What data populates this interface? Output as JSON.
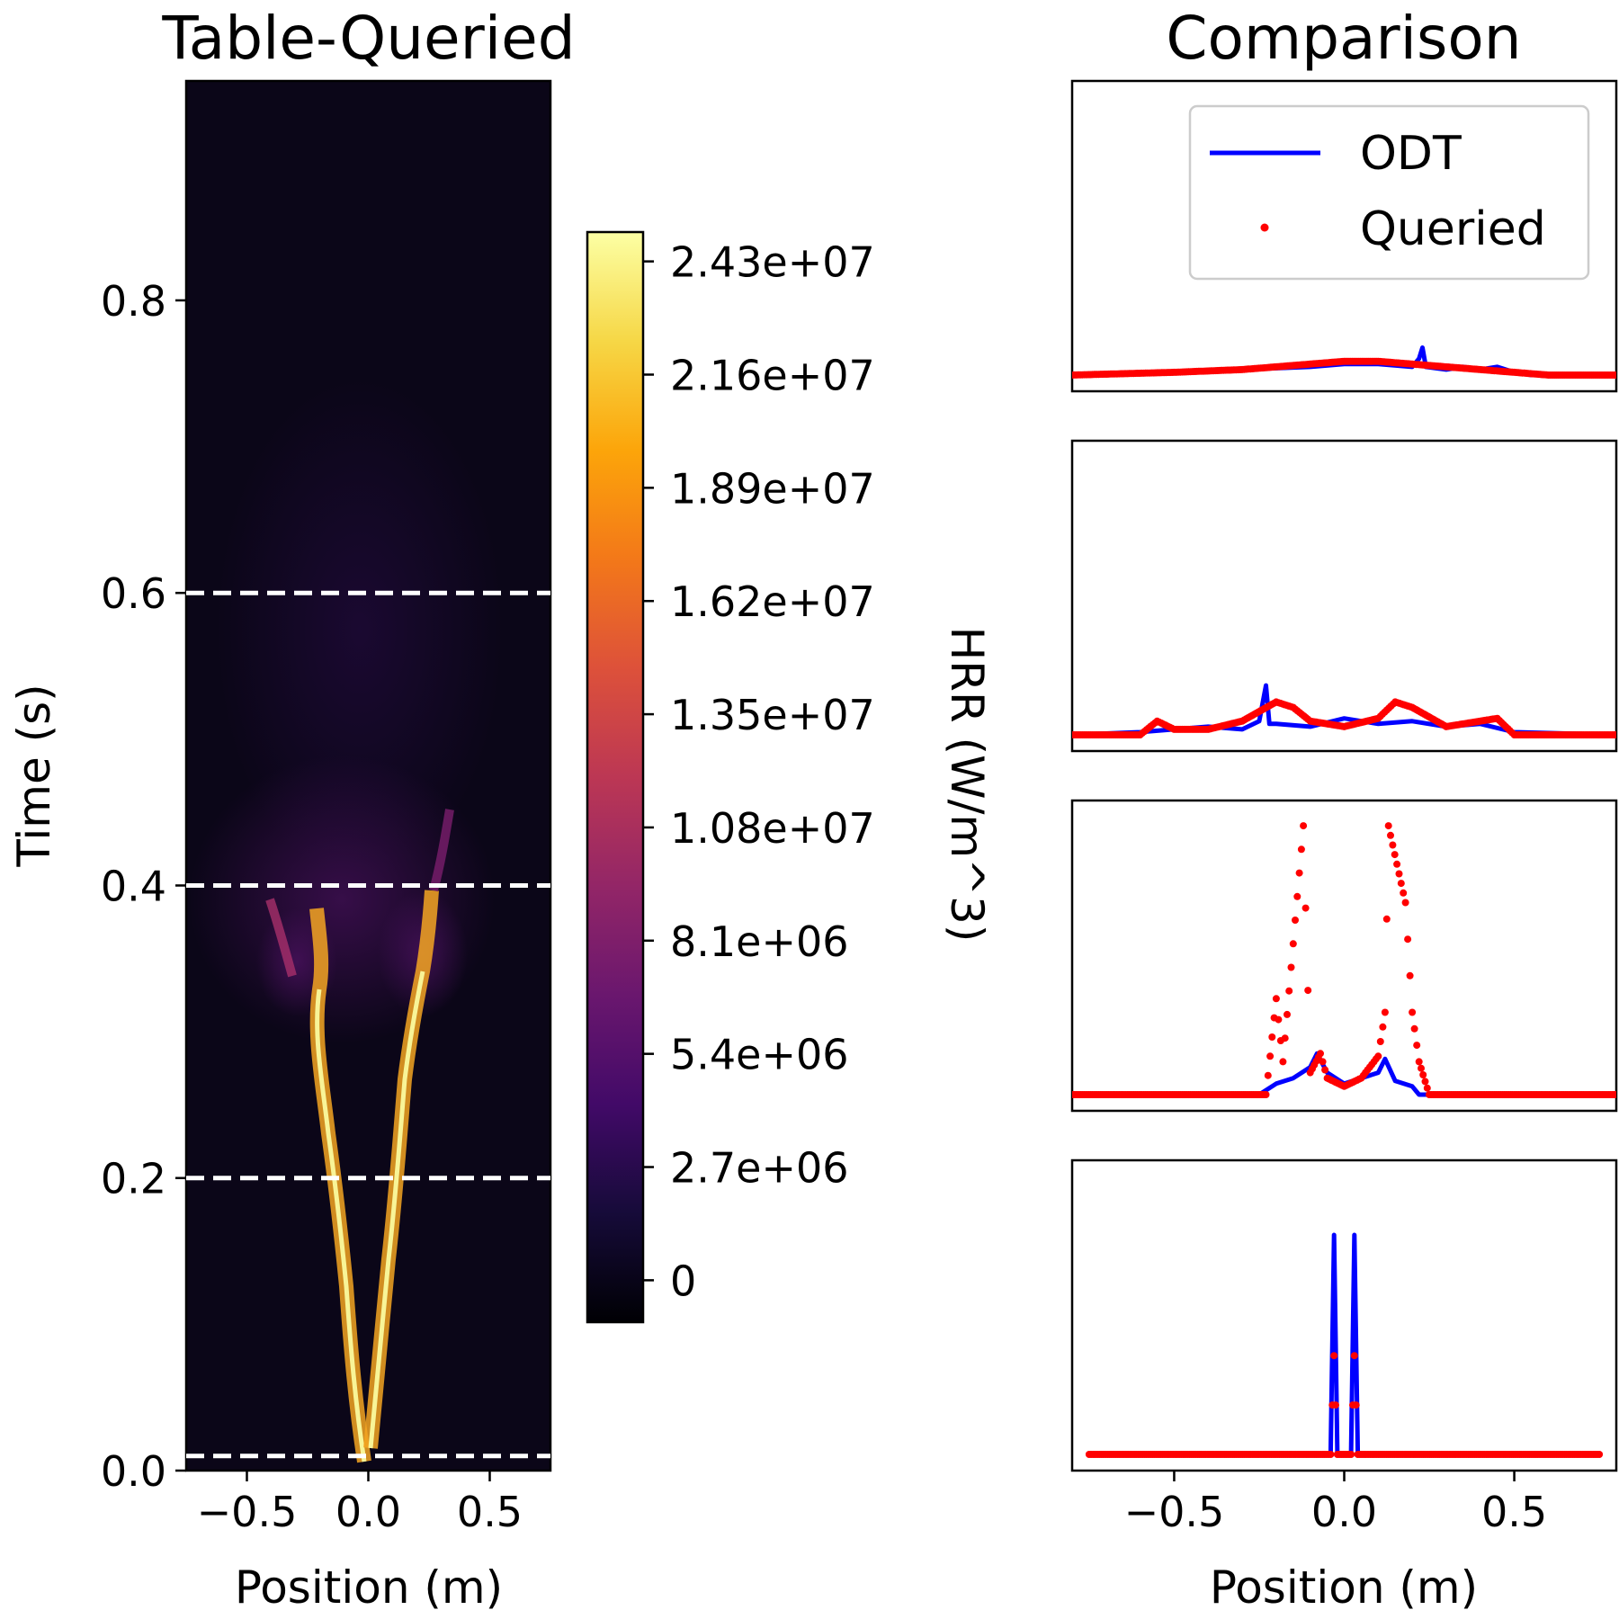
{
  "chart_data": [
    {
      "type": "heatmap",
      "title": "Table-Queried",
      "xlabel": "Position (m)",
      "ylabel": "Time (s)",
      "xlim": [
        -0.75,
        0.75
      ],
      "ylim": [
        0.0,
        0.95
      ],
      "x_ticks": [
        "−0.5",
        "0.0",
        "0.5"
      ],
      "x_tick_values": [
        -0.5,
        0.0,
        0.5
      ],
      "y_ticks": [
        "0.0",
        "0.2",
        "0.4",
        "0.6",
        "0.8"
      ],
      "y_tick_values": [
        0.0,
        0.2,
        0.4,
        0.6,
        0.8
      ],
      "colormap": "inferno",
      "reference_lines": [
        0.01,
        0.2,
        0.4,
        0.6
      ],
      "reference_line_color": "#ffffff",
      "reference_line_style": "dashed",
      "colorbar": {
        "label": "HRR (W/m^3)",
        "range": [
          -1000000,
          25000000
        ],
        "tick_labels": [
          "0",
          "2.7e+06",
          "5.4e+06",
          "8.1e+06",
          "1.08e+07",
          "1.35e+07",
          "1.62e+07",
          "1.89e+07",
          "2.16e+07",
          "2.43e+07"
        ],
        "tick_values": [
          0,
          2700000,
          5400000,
          8100000,
          10800000,
          13500000,
          16200000,
          18900000,
          21600000,
          24300000
        ]
      }
    },
    {
      "type": "line",
      "title": "Comparison",
      "xlabel": "Position (m)",
      "xlim": [
        -0.8,
        0.8
      ],
      "x_ticks": [
        "−0.5",
        "0.0",
        "0.5"
      ],
      "x_tick_values": [
        -0.5,
        0.0,
        0.5
      ],
      "legend": {
        "placement": "upper right",
        "entries": [
          "ODT",
          "Queried"
        ]
      },
      "colors": {
        "ODT": "#0000ff",
        "Queried": "#ff0000"
      },
      "panels": [
        {
          "time": 0.6,
          "ylim": [
            0,
            1
          ],
          "series": [
            {
              "name": "ODT",
              "x": [
                -0.8,
                -0.5,
                -0.3,
                -0.1,
                0.0,
                0.1,
                0.2,
                0.22,
                0.23,
                0.24,
                0.3,
                0.35,
                0.4,
                0.45,
                0.5,
                0.55,
                0.8
              ],
              "y": [
                0.0,
                0.01,
                0.02,
                0.03,
                0.04,
                0.04,
                0.03,
                0.06,
                0.1,
                0.03,
                0.02,
                0.03,
                0.02,
                0.03,
                0.01,
                0.0,
                0.0
              ]
            },
            {
              "name": "Queried",
              "x": [
                -0.8,
                -0.5,
                -0.3,
                -0.1,
                0.0,
                0.1,
                0.2,
                0.3,
                0.4,
                0.5,
                0.6,
                0.8
              ],
              "y": [
                0.0,
                0.01,
                0.02,
                0.04,
                0.05,
                0.05,
                0.04,
                0.03,
                0.02,
                0.01,
                0.0,
                0.0
              ]
            }
          ]
        },
        {
          "time": 0.4,
          "ylim": [
            0,
            1
          ],
          "series": [
            {
              "name": "ODT",
              "x": [
                -0.8,
                -0.6,
                -0.5,
                -0.4,
                -0.3,
                -0.25,
                -0.23,
                -0.22,
                -0.2,
                -0.1,
                0.0,
                0.1,
                0.2,
                0.3,
                0.4,
                0.5,
                0.8
              ],
              "y": [
                0.0,
                0.01,
                0.02,
                0.03,
                0.02,
                0.05,
                0.18,
                0.04,
                0.04,
                0.03,
                0.06,
                0.04,
                0.05,
                0.03,
                0.04,
                0.01,
                0.0
              ]
            },
            {
              "name": "Queried",
              "x": [
                -0.8,
                -0.6,
                -0.55,
                -0.5,
                -0.4,
                -0.3,
                -0.2,
                -0.15,
                -0.1,
                0.0,
                0.1,
                0.15,
                0.2,
                0.3,
                0.45,
                0.5,
                0.8
              ],
              "y": [
                0.0,
                0.0,
                0.05,
                0.02,
                0.02,
                0.05,
                0.12,
                0.1,
                0.05,
                0.03,
                0.06,
                0.12,
                0.1,
                0.03,
                0.06,
                0.0,
                0.0
              ]
            }
          ]
        },
        {
          "time": 0.2,
          "ylim": [
            0,
            1
          ],
          "series": [
            {
              "name": "ODT",
              "x": [
                -0.8,
                -0.25,
                -0.2,
                -0.15,
                -0.1,
                -0.08,
                -0.05,
                0.0,
                0.05,
                0.1,
                0.12,
                0.15,
                0.2,
                0.22,
                0.8
              ],
              "y": [
                0.0,
                0.0,
                0.04,
                0.06,
                0.1,
                0.15,
                0.08,
                0.04,
                0.06,
                0.08,
                0.13,
                0.05,
                0.03,
                0.0,
                0.0
              ]
            },
            {
              "name": "Queried",
              "x": [
                -0.8,
                -0.23,
                -0.2,
                -0.18,
                -0.12,
                -0.1,
                -0.07,
                -0.05,
                0.0,
                0.05,
                0.1,
                0.12,
                0.13,
                0.18,
                0.2,
                0.22,
                0.25,
                0.8
              ],
              "y": [
                0.0,
                0.0,
                0.35,
                0.12,
                0.98,
                0.08,
                0.15,
                0.06,
                0.03,
                0.06,
                0.14,
                0.3,
                0.98,
                0.7,
                0.3,
                0.12,
                0.0,
                0.0
              ]
            }
          ]
        },
        {
          "time": 0.01,
          "ylim": [
            0,
            1
          ],
          "series": [
            {
              "name": "ODT",
              "x": [
                -0.75,
                -0.04,
                -0.03,
                -0.02,
                0.02,
                0.03,
                0.04,
                0.75
              ],
              "y": [
                0.0,
                0.0,
                0.8,
                0.0,
                0.0,
                0.8,
                0.0,
                0.0
              ]
            },
            {
              "name": "Queried",
              "x": [
                -0.75,
                -0.04,
                -0.03,
                -0.02,
                0.02,
                0.03,
                0.04,
                0.75
              ],
              "y": [
                0.0,
                0.0,
                0.36,
                0.0,
                0.0,
                0.36,
                0.0,
                0.0
              ]
            }
          ]
        }
      ]
    }
  ]
}
